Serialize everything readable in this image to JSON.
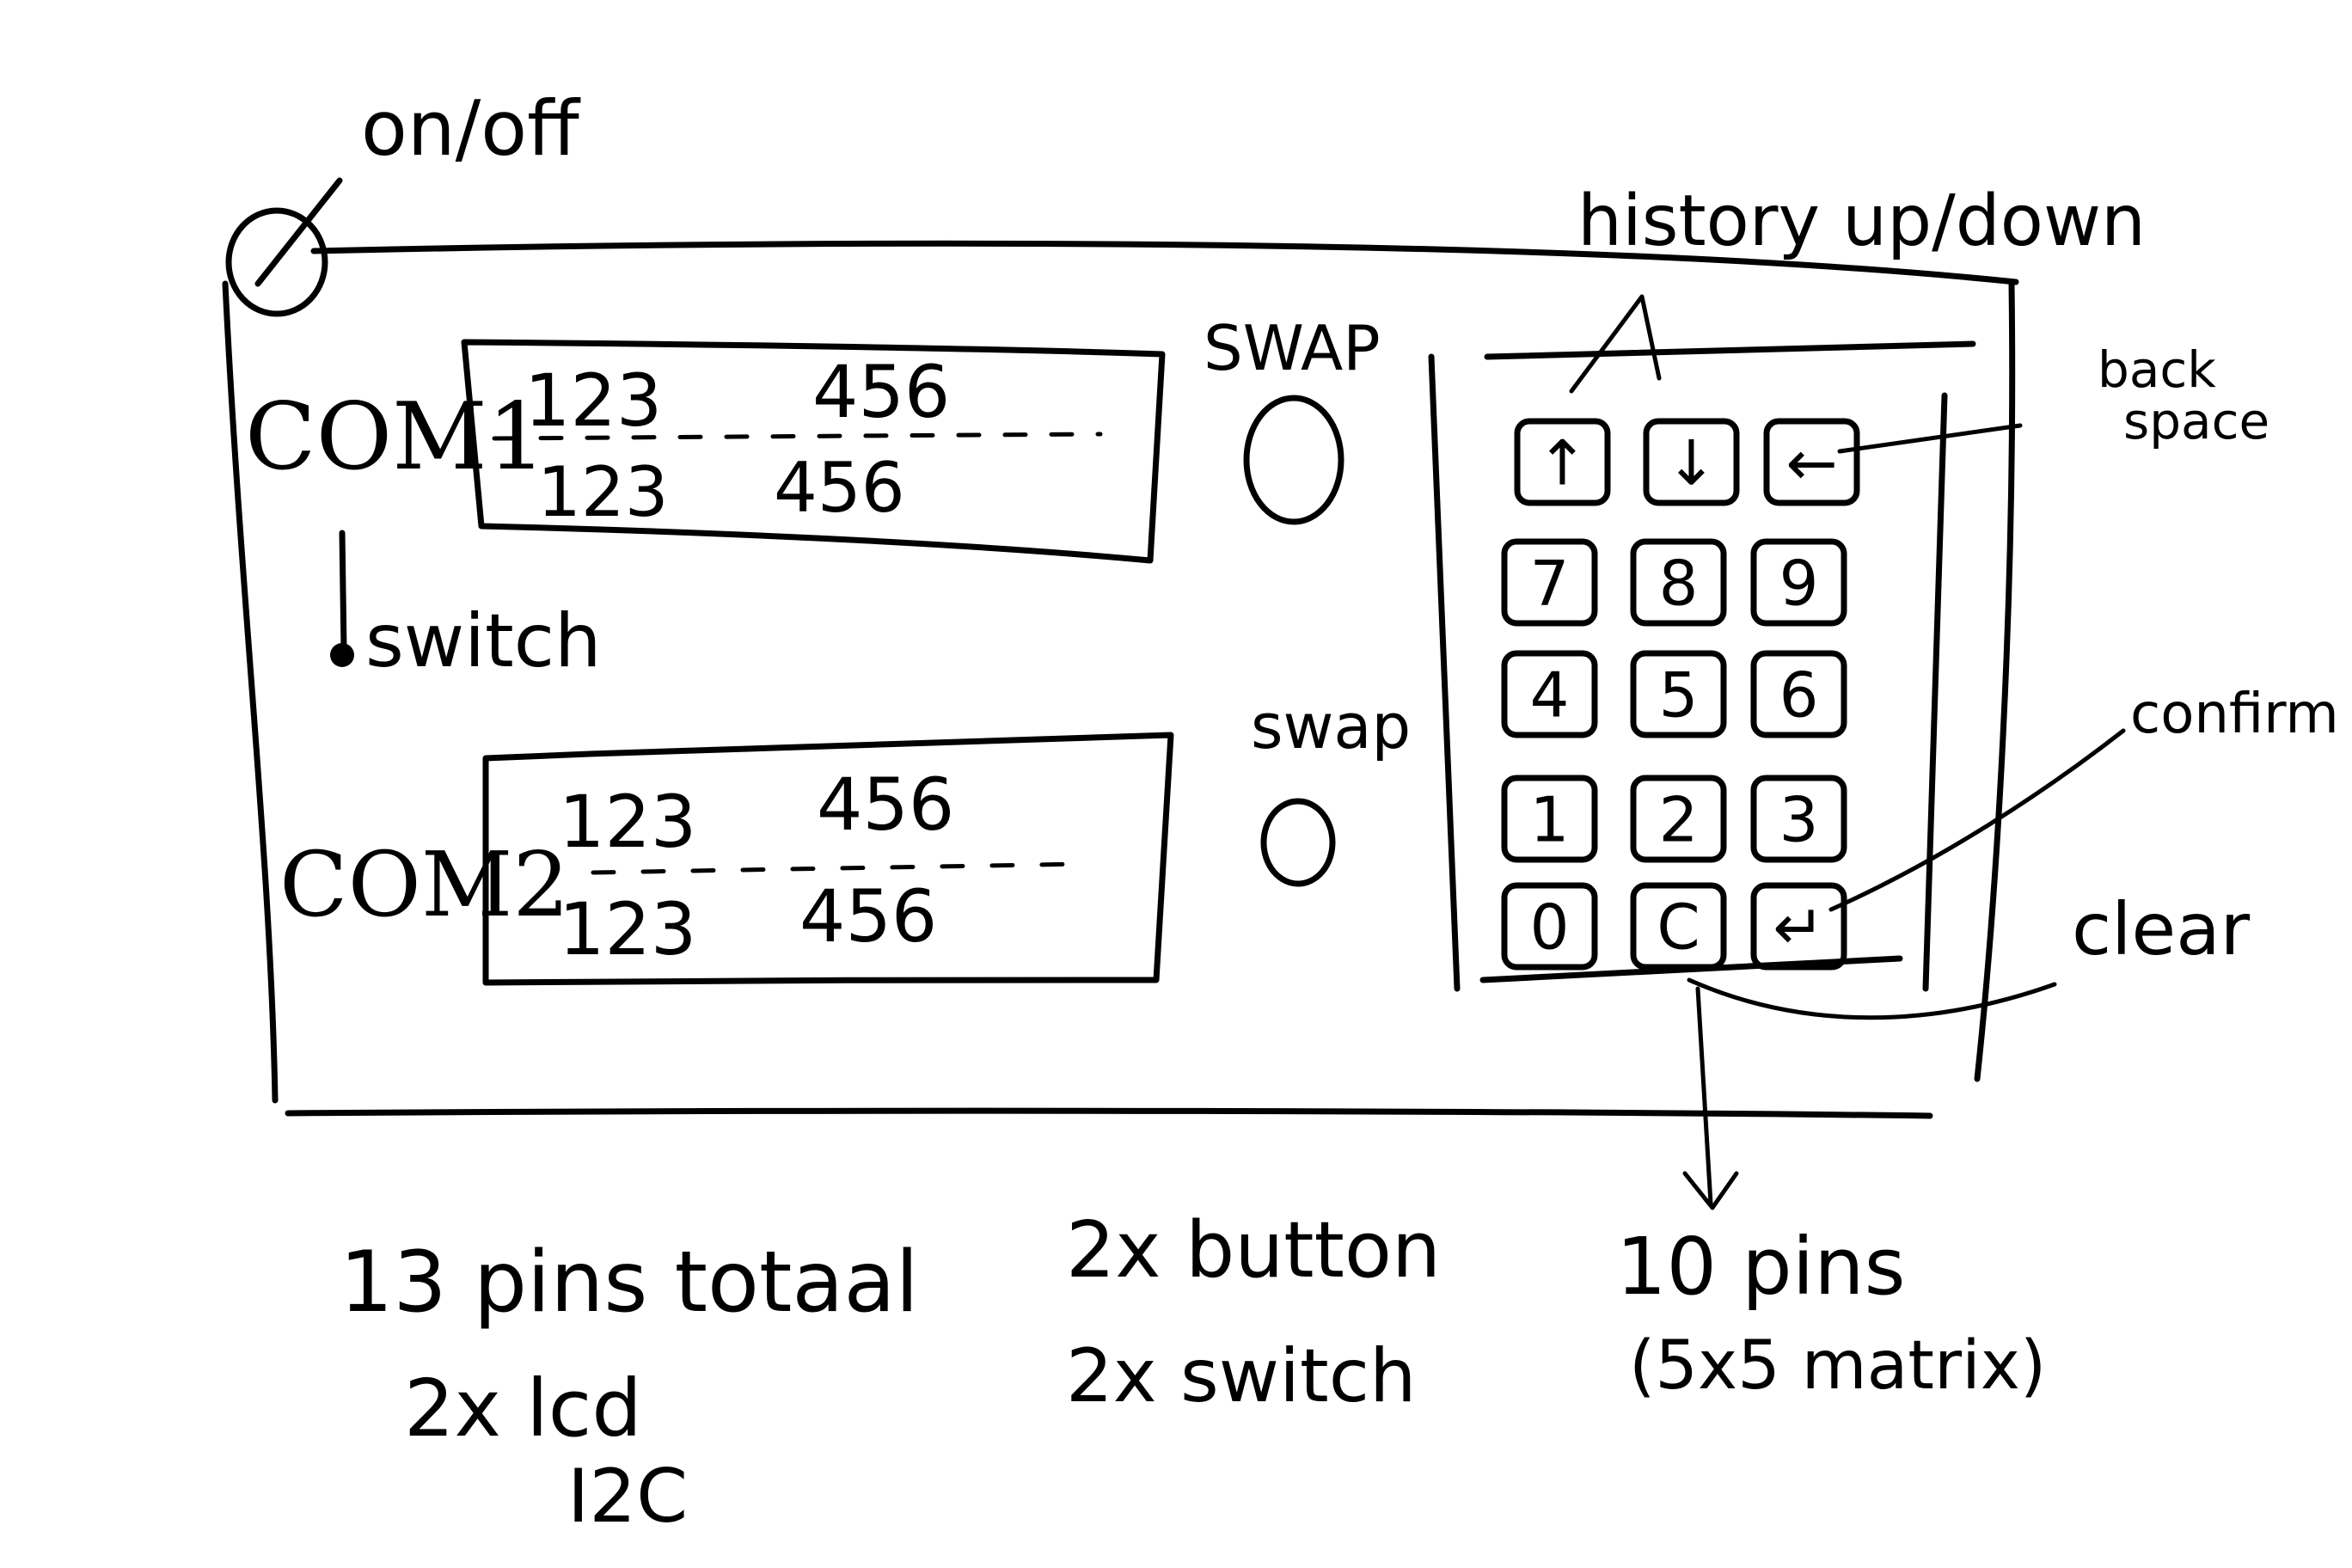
{
  "labels": {
    "on_off": "on/off",
    "history": "history up/down",
    "backspace_line1": "back",
    "backspace_line2": "space",
    "confirm": "confirm",
    "clear": "clear",
    "com1": "COM1",
    "com2": "COM2",
    "switch": "switch",
    "swap_1": "SWAP",
    "swap_2": "swap"
  },
  "com1_display": {
    "active_left": "123",
    "active_right": "456",
    "standby_left": "123",
    "standby_right": "456"
  },
  "com2_display": {
    "active_left": "123",
    "active_right": "456",
    "standby_left": "123",
    "standby_right": "456"
  },
  "keypad": {
    "rows": [
      [
        "↑",
        "↓",
        "←"
      ],
      [
        "7",
        "8",
        "9"
      ],
      [
        "4",
        "5",
        "6"
      ],
      [
        "1",
        "2",
        "3"
      ],
      [
        "0",
        "C",
        "↵"
      ]
    ]
  },
  "notes": {
    "pins_total": "13 pins totaal",
    "lcd": "2x lcd",
    "i2c": "I2C",
    "buttons": "2x button",
    "switches": "2x switch",
    "keypad_pins": "10 pins",
    "matrix": "(5x5 matrix)"
  }
}
